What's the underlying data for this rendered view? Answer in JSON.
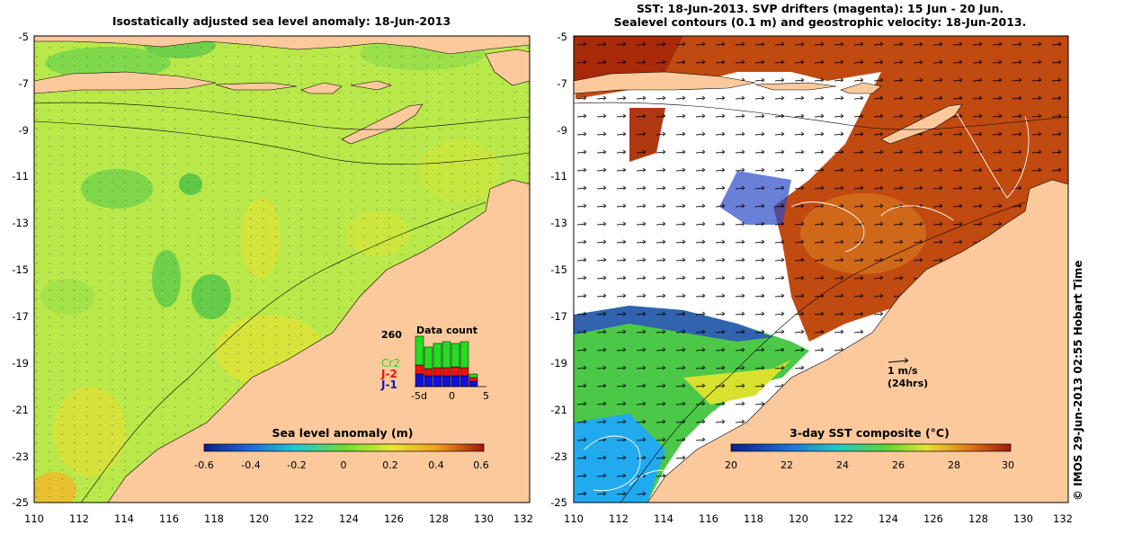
{
  "left_panel": {
    "title": "Isostatically adjusted sea level anomaly: 18-Jun-2013",
    "y_ticks": [
      "-5",
      "-7",
      "-9",
      "-11",
      "-13",
      "-15",
      "-17",
      "-19",
      "-21",
      "-23",
      "-25"
    ],
    "x_ticks": [
      "110",
      "112",
      "114",
      "116",
      "118",
      "120",
      "122",
      "124",
      "126",
      "128",
      "130",
      "132"
    ],
    "colorbar": {
      "label": "Sea level anomaly (m)",
      "ticks": [
        "-0.6",
        "-0.4",
        "-0.2",
        "0",
        "0.2",
        "0.4",
        "0.6"
      ],
      "range": [
        -0.6,
        0.6
      ]
    },
    "data_count": {
      "title": "Data count",
      "max_label": "260",
      "x_ticks": [
        "-5d",
        "0",
        "5"
      ],
      "legend": [
        {
          "label": "Cr2",
          "color": "#22dd22"
        },
        {
          "label": "J-2",
          "color": "#ee1111"
        },
        {
          "label": "J-1",
          "color": "#1111dd"
        }
      ]
    }
  },
  "right_panel": {
    "title_line1": "SST: 18-Jun-2013. SVP drifters (magenta): 15 Jun - 20 Jun.",
    "title_line2": "Sealevel contours (0.1 m) and geostrophic velocity: 18-Jun-2013.",
    "y_ticks": [
      "-5",
      "-7",
      "-9",
      "-11",
      "-13",
      "-15",
      "-17",
      "-19",
      "-21",
      "-23",
      "-25"
    ],
    "x_ticks": [
      "110",
      "112",
      "114",
      "116",
      "118",
      "120",
      "122",
      "124",
      "126",
      "128",
      "130",
      "132"
    ],
    "scale_label": "1 m/s",
    "scale_sub": "(24hrs)",
    "colorbar": {
      "label": "3-day SST composite (°C)",
      "ticks": [
        "20",
        "22",
        "24",
        "26",
        "28",
        "30"
      ],
      "range": [
        20,
        30
      ]
    }
  },
  "copyright": "© IMOS 29-Jun-2013 02:55 Hobart Time",
  "colors": {
    "land": "#fbc99b",
    "sla_base": "#b9e84a",
    "sst_warm": "#c04a10"
  }
}
